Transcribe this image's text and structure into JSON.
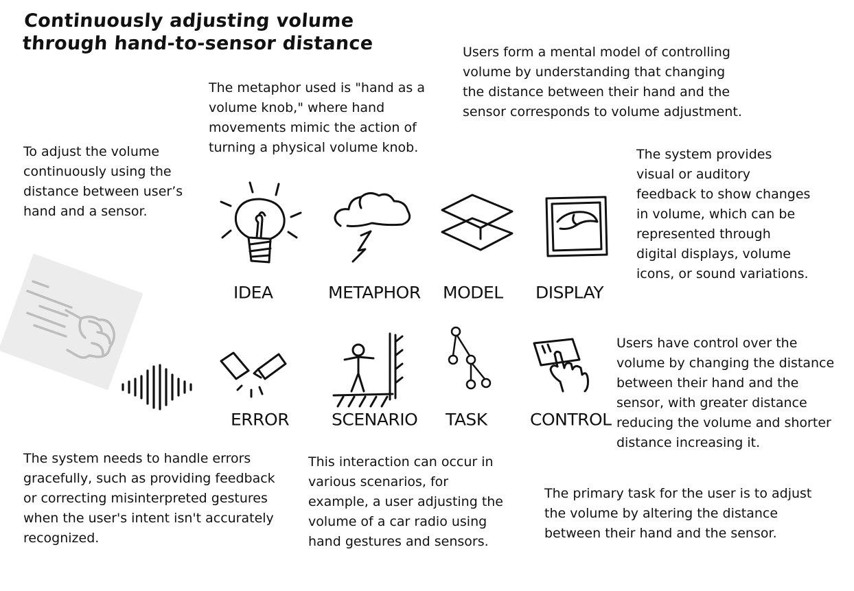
{
  "title_line1": "Continuously adjusting volume",
  "title_line2": "through hand-to-sensor distance",
  "notes": {
    "idea": "To adjust the volume\ncontinuously using the\ndistance between user’s\nhand and a sensor.",
    "metaphor": "The metaphor used is \"hand as a\nvolume knob,\" where hand\nmovements mimic the action of\nturning a physical volume knob.",
    "model": "Users form a mental model of controlling\nvolume by understanding that changing\nthe distance between their hand and the\nsensor corresponds to volume adjustment.",
    "display": "The system provides\nvisual or auditory\nfeedback to show changes\nin volume, which can be\nrepresented through\ndigital displays, volume\nicons, or sound variations.",
    "control": "Users have control over the\nvolume by changing the distance\nbetween their hand and the\nsensor, with greater distance\nreducing the volume and shorter\ndistance increasing it.",
    "error": "The system needs to handle errors\ngracefully, such as providing feedback\nor correcting misinterpreted gestures\nwhen the user's intent isn't accurately\nrecognized.",
    "scenario": "This interaction can occur in\nvarious scenarios, for\nexample, a user adjusting the\nvolume of a car radio using\nhand gestures and sensors.",
    "task": "The primary task for the user is to adjust\nthe volume by altering the distance\nbetween their hand and the sensor."
  },
  "labels": {
    "idea": "IDEA",
    "metaphor": "METAPHOR",
    "model": "MODEL",
    "display": "DISPLAY",
    "error": "ERROR",
    "scenario": "SCENARIO",
    "task": "TASK",
    "control": "CONTROL"
  },
  "icons": {
    "idea": "lightbulb-icon",
    "metaphor": "storm-cloud-icon",
    "model": "stacked-planes-icon",
    "display": "framed-display-icon",
    "error": "broken-connection-icon",
    "scenario": "person-scene-icon",
    "task": "task-tree-icon",
    "control": "hand-touch-icon",
    "hand": "moving-fist-icon",
    "sound": "sound-wave-icon"
  },
  "colors": {
    "ink": "#111111",
    "hand_bg": "#ececec",
    "hand_stroke": "#bdbdbd"
  }
}
